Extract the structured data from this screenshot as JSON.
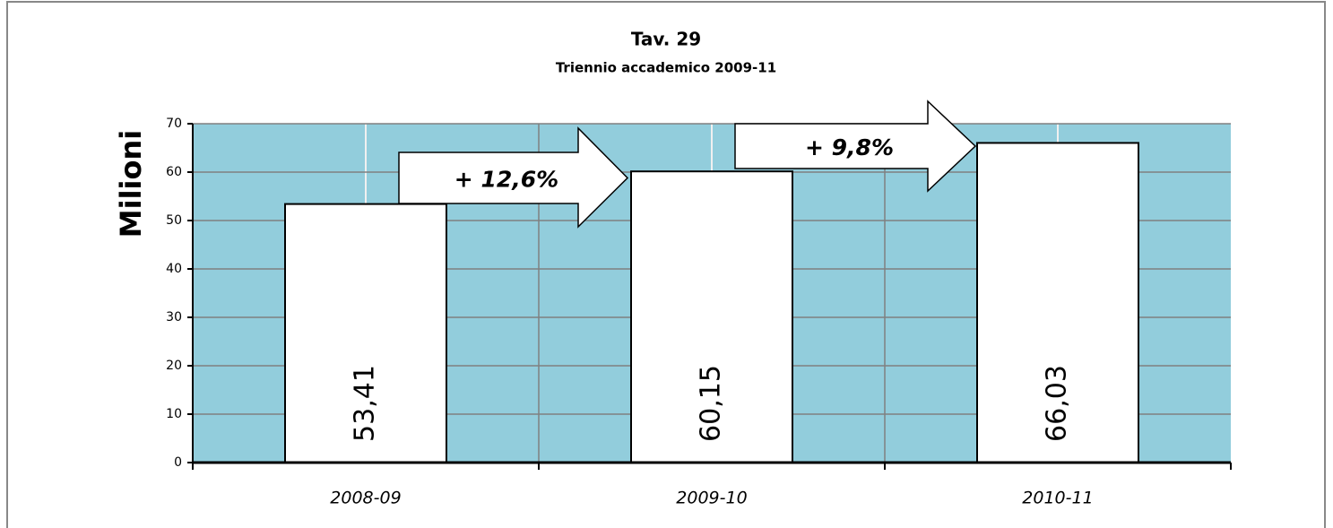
{
  "chart_data": {
    "type": "bar",
    "title": "Tav. 29",
    "subtitle": "Triennio accademico 2009-11",
    "y_label": "Milioni",
    "categories": [
      "2008-09",
      "2009-10",
      "2010-11"
    ],
    "values": [
      53.41,
      60.15,
      66.03
    ],
    "value_labels": [
      "53,41",
      "60,15",
      "66,03"
    ],
    "color": "#ffffff",
    "plot_background": "#92cddc",
    "ylim": [
      0,
      70
    ],
    "yticks": [
      0,
      10,
      20,
      30,
      40,
      50,
      60,
      70
    ],
    "grid": true,
    "annotations": [
      "+ 12,6%",
      "+ 9,8%"
    ]
  }
}
